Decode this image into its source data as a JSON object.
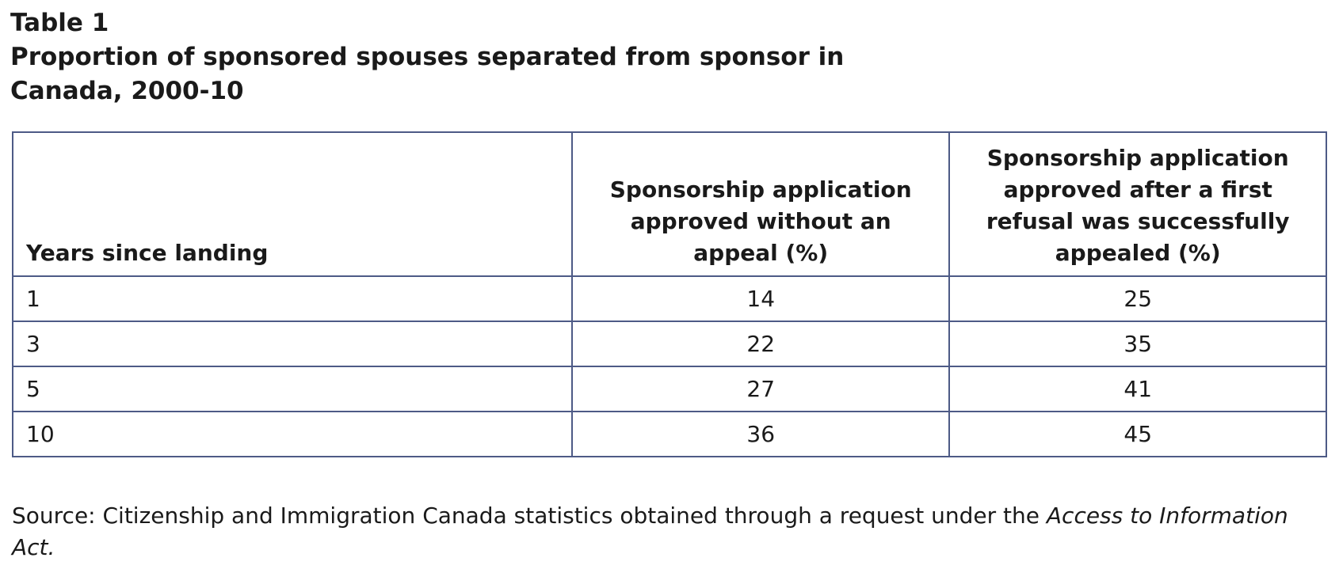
{
  "title": {
    "label": "Table 1",
    "text": "Proportion of sponsored spouses separated from sponsor in Canada, 2000-10"
  },
  "table": {
    "header": [
      "Years since landing",
      "Sponsorship application approved without an appeal (%)",
      "Sponsorship application approved after a first refusal was successfully appealed (%)"
    ],
    "rows": [
      [
        1,
        14,
        25
      ],
      [
        3,
        22,
        35
      ],
      [
        5,
        27,
        41
      ],
      [
        10,
        36,
        45
      ]
    ]
  },
  "source": {
    "text": "Source: Citizenship and Immigration Canada statistics obtained through a request under the",
    "italic": "Access to Information Act."
  }
}
